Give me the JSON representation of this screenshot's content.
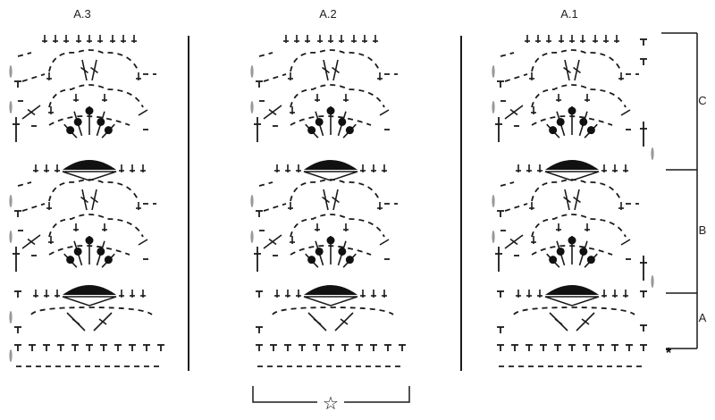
{
  "charts": [
    {
      "title": "A.3"
    },
    {
      "title": "A.2"
    },
    {
      "title": "A.1"
    }
  ],
  "sections": {
    "c": "C",
    "b": "B",
    "a": "A"
  },
  "marks": {
    "asterisk": "*",
    "star": "☆"
  },
  "colors": {
    "ink": "#1a1a1a",
    "stitch_fill": "#111111",
    "edge_oval": "#999999"
  }
}
